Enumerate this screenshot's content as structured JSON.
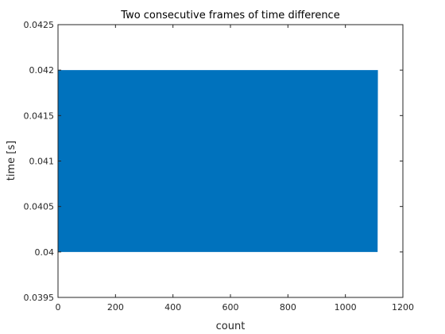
{
  "chart_data": {
    "type": "line",
    "title": "Two consecutive frames of time difference",
    "xlabel": "count",
    "ylabel": "time [s]",
    "xlim": [
      0,
      1200
    ],
    "ylim": [
      0.0395,
      0.0425
    ],
    "xticks": [
      0,
      200,
      400,
      600,
      800,
      1000,
      1200
    ],
    "xtick_labels": [
      "0",
      "200",
      "400",
      "600",
      "800",
      "1000",
      "1200"
    ],
    "yticks": [
      0.0395,
      0.04,
      0.0405,
      0.041,
      0.0415,
      0.042,
      0.0425
    ],
    "ytick_labels": [
      "0.0395",
      "0.04",
      "0.0405",
      "0.041",
      "0.0415",
      "0.042",
      "0.0425"
    ],
    "grid": false,
    "series": [
      {
        "name": "time difference",
        "color": "#0072BD",
        "n_points": 1112,
        "pattern": "alternates between low and high values",
        "low_value": 0.04,
        "high_value": 0.042
      }
    ]
  }
}
